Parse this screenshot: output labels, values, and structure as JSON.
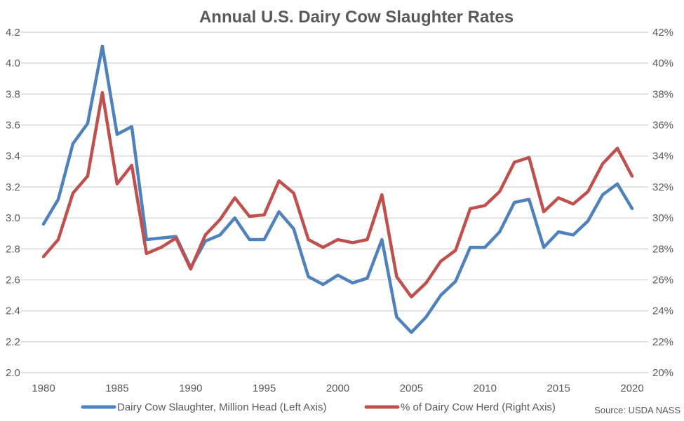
{
  "chart_data": {
    "type": "line",
    "title": "Annual U.S. Dairy Cow Slaughter Rates",
    "source": "Source: USDA NASS",
    "xlabel": "",
    "x": [
      1980,
      1981,
      1982,
      1983,
      1984,
      1985,
      1986,
      1987,
      1988,
      1989,
      1990,
      1991,
      1992,
      1993,
      1994,
      1995,
      1996,
      1997,
      1998,
      1999,
      2000,
      2001,
      2002,
      2003,
      2004,
      2005,
      2006,
      2007,
      2008,
      2009,
      2010,
      2011,
      2012,
      2013,
      2014,
      2015,
      2016,
      2017,
      2018,
      2019,
      2020
    ],
    "x_ticks": [
      "1980",
      "1985",
      "1990",
      "1995",
      "2000",
      "2005",
      "2010",
      "2015",
      "2020"
    ],
    "x_tick_values": [
      1980,
      1985,
      1990,
      1995,
      2000,
      2005,
      2010,
      2015,
      2020
    ],
    "xlim": [
      1980,
      2020
    ],
    "y_left": {
      "ylim": [
        2.0,
        4.2
      ],
      "ticks": [
        "2.0",
        "2.2",
        "2.4",
        "2.6",
        "2.8",
        "3.0",
        "3.2",
        "3.4",
        "3.6",
        "3.8",
        "4.0",
        "4.2"
      ],
      "tick_values": [
        2.0,
        2.2,
        2.4,
        2.6,
        2.8,
        3.0,
        3.2,
        3.4,
        3.6,
        3.8,
        4.0,
        4.2
      ]
    },
    "y_right": {
      "ylim": [
        20,
        42
      ],
      "ticks": [
        "20%",
        "22%",
        "24%",
        "26%",
        "28%",
        "30%",
        "32%",
        "34%",
        "36%",
        "38%",
        "40%",
        "42%"
      ],
      "tick_values": [
        20,
        22,
        24,
        26,
        28,
        30,
        32,
        34,
        36,
        38,
        40,
        42
      ]
    },
    "grid": true,
    "legend_position": "bottom",
    "series": [
      {
        "name": "Dairy Cow Slaughter, Million Head (Left Axis)",
        "axis": "left",
        "color": "#4F81BD",
        "values": [
          2.96,
          3.12,
          3.48,
          3.61,
          4.11,
          3.54,
          3.59,
          2.86,
          2.87,
          2.88,
          2.68,
          2.85,
          2.89,
          3.0,
          2.86,
          2.86,
          3.04,
          2.93,
          2.62,
          2.57,
          2.63,
          2.58,
          2.61,
          2.86,
          2.36,
          2.26,
          2.36,
          2.5,
          2.59,
          2.81,
          2.81,
          2.91,
          3.1,
          3.12,
          2.81,
          2.91,
          2.89,
          2.98,
          3.15,
          3.22,
          3.06
        ]
      },
      {
        "name": "% of Dairy Cow Herd (Right Axis)",
        "axis": "right",
        "color": "#C0504D",
        "values": [
          27.5,
          28.6,
          31.6,
          32.7,
          38.1,
          32.2,
          33.4,
          27.7,
          28.1,
          28.7,
          26.7,
          28.9,
          29.9,
          31.3,
          30.1,
          30.2,
          32.4,
          31.6,
          28.6,
          28.1,
          28.6,
          28.4,
          28.6,
          31.5,
          26.2,
          24.9,
          25.8,
          27.2,
          27.9,
          30.6,
          30.8,
          31.7,
          33.6,
          33.9,
          30.4,
          31.3,
          30.9,
          31.7,
          33.5,
          34.5,
          32.7
        ]
      }
    ]
  }
}
